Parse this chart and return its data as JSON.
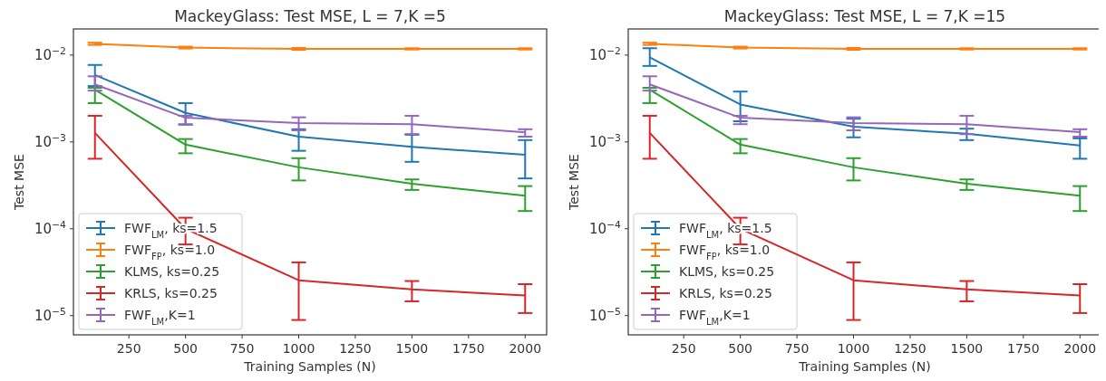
{
  "chart_data": [
    {
      "type": "line",
      "title": "MackeyGlass: Test MSE, L = 7,K =5",
      "xlabel": "Training Samples (N)",
      "ylabel": "Test MSE",
      "x": [
        100,
        500,
        1000,
        1500,
        2000
      ],
      "xlim": [
        5,
        2095
      ],
      "xticks": [
        250,
        500,
        750,
        1000,
        1250,
        1500,
        1750,
        2000
      ],
      "ylim": [
        6e-06,
        0.02
      ],
      "yticks": [
        {
          "value": 1e-05,
          "label": "10$^{−5}$"
        },
        {
          "value": 0.0001,
          "label": "10$^{−4}$"
        },
        {
          "value": 0.001,
          "label": "10$^{−3}$"
        },
        {
          "value": 0.01,
          "label": "10$^{−2}$"
        }
      ],
      "log": "y",
      "grid": false,
      "legend": "bottom left",
      "marker": "none",
      "line_style": "solid",
      "series": [
        {
          "name": "FWF$_{LM}$, ks=1.5",
          "color": "#1f77b4",
          "values": [
            0.0059,
            0.00216,
            0.00115,
            0.00088,
            0.00071
          ],
          "errors": [
            [
              0.0044,
              0.0077
            ],
            [
              0.00158,
              0.0028
            ],
            [
              0.00079,
              0.0014
            ],
            [
              0.00059,
              0.00121
            ],
            [
              0.00038,
              0.00105
            ]
          ]
        },
        {
          "name": "FWF$_{FP}$, ks=1.0",
          "color": "#ff7f0e",
          "values": [
            0.0135,
            0.0122,
            0.0118,
            0.0118,
            0.0118
          ],
          "errors": [
            [
              0.0131,
              0.0139
            ],
            [
              0.0119,
              0.0125
            ],
            [
              0.0115,
              0.0121
            ],
            [
              0.0116,
              0.012
            ],
            [
              0.0116,
              0.012
            ]
          ]
        },
        {
          "name": "KLMS, ks=0.25",
          "color": "#2ca02c",
          "values": [
            0.004,
            0.00093,
            0.00051,
            0.00033,
            0.00024
          ],
          "errors": [
            [
              0.0028,
              0.0042
            ],
            [
              0.00074,
              0.00108
            ],
            [
              0.00036,
              0.00065
            ],
            [
              0.00028,
              0.00037
            ],
            [
              0.00016,
              0.00031
            ]
          ]
        },
        {
          "name": "KRLS, ks=0.25",
          "color": "#d62728",
          "values": [
            0.00127,
            0.0001,
            2.55e-05,
            2e-05,
            1.7e-05
          ],
          "errors": [
            [
              0.00064,
              0.002
            ],
            [
              6.6e-05,
              0.000134
            ],
            [
              8.9e-06,
              4.1e-05
            ],
            [
              1.46e-05,
              2.5e-05
            ],
            [
              1.07e-05,
              2.3e-05
            ]
          ]
        },
        {
          "name": "FWF$_{LM}$,K=1",
          "color": "#9467bd",
          "values": [
            0.0046,
            0.0019,
            0.00165,
            0.0016,
            0.00129
          ],
          "errors": [
            [
              0.0039,
              0.0057
            ],
            [
              0.0016,
              0.002
            ],
            [
              0.00136,
              0.00192
            ],
            [
              0.00123,
              0.002
            ],
            [
              0.00115,
              0.0014
            ]
          ]
        }
      ]
    },
    {
      "type": "line",
      "title": "MackeyGlass: Test MSE, L = 7,K =15",
      "xlabel": "Training Samples (N)",
      "ylabel": "Test MSE",
      "x": [
        100,
        500,
        1000,
        1500,
        2000
      ],
      "xlim": [
        5,
        2095
      ],
      "xticks": [
        250,
        500,
        750,
        1000,
        1250,
        1500,
        1750,
        2000
      ],
      "ylim": [
        6e-06,
        0.02
      ],
      "yticks": [
        {
          "value": 1e-05,
          "label": "10$^{−5}$"
        },
        {
          "value": 0.0001,
          "label": "10$^{−4}$"
        },
        {
          "value": 0.001,
          "label": "10$^{−3}$"
        },
        {
          "value": 0.01,
          "label": "10$^{−2}$"
        }
      ],
      "log": "y",
      "grid": false,
      "legend": "bottom left",
      "marker": "none",
      "line_style": "solid",
      "series": [
        {
          "name": "FWF$_{LM}$, ks=1.5",
          "color": "#1f77b4",
          "values": [
            0.0094,
            0.0027,
            0.0015,
            0.00124,
            0.00091
          ],
          "errors": [
            [
              0.0075,
              0.012
            ],
            [
              0.00173,
              0.0038
            ],
            [
              0.00113,
              0.00185
            ],
            [
              0.00105,
              0.00142
            ],
            [
              0.00064,
              0.0011
            ]
          ]
        },
        {
          "name": "FWF$_{FP}$, ks=1.0",
          "color": "#ff7f0e",
          "values": [
            0.0135,
            0.0122,
            0.0118,
            0.0118,
            0.0118
          ],
          "errors": [
            [
              0.0131,
              0.0139
            ],
            [
              0.0119,
              0.0125
            ],
            [
              0.0115,
              0.0121
            ],
            [
              0.0116,
              0.012
            ],
            [
              0.0116,
              0.012
            ]
          ]
        },
        {
          "name": "KLMS, ks=0.25",
          "color": "#2ca02c",
          "values": [
            0.004,
            0.00093,
            0.00051,
            0.00033,
            0.00024
          ],
          "errors": [
            [
              0.0028,
              0.0042
            ],
            [
              0.00074,
              0.00108
            ],
            [
              0.00036,
              0.00065
            ],
            [
              0.00028,
              0.00037
            ],
            [
              0.00016,
              0.00031
            ]
          ]
        },
        {
          "name": "KRLS, ks=0.25",
          "color": "#d62728",
          "values": [
            0.00127,
            0.0001,
            2.55e-05,
            2e-05,
            1.7e-05
          ],
          "errors": [
            [
              0.00064,
              0.002
            ],
            [
              6.6e-05,
              0.000134
            ],
            [
              8.9e-06,
              4.1e-05
            ],
            [
              1.46e-05,
              2.5e-05
            ],
            [
              1.07e-05,
              2.3e-05
            ]
          ]
        },
        {
          "name": "FWF$_{LM}$,K=1",
          "color": "#9467bd",
          "values": [
            0.0046,
            0.0019,
            0.00165,
            0.0016,
            0.0013
          ],
          "errors": [
            [
              0.0039,
              0.0057
            ],
            [
              0.0016,
              0.002
            ],
            [
              0.00136,
              0.00192
            ],
            [
              0.00123,
              0.002
            ],
            [
              0.00115,
              0.0014
            ]
          ]
        }
      ]
    }
  ]
}
